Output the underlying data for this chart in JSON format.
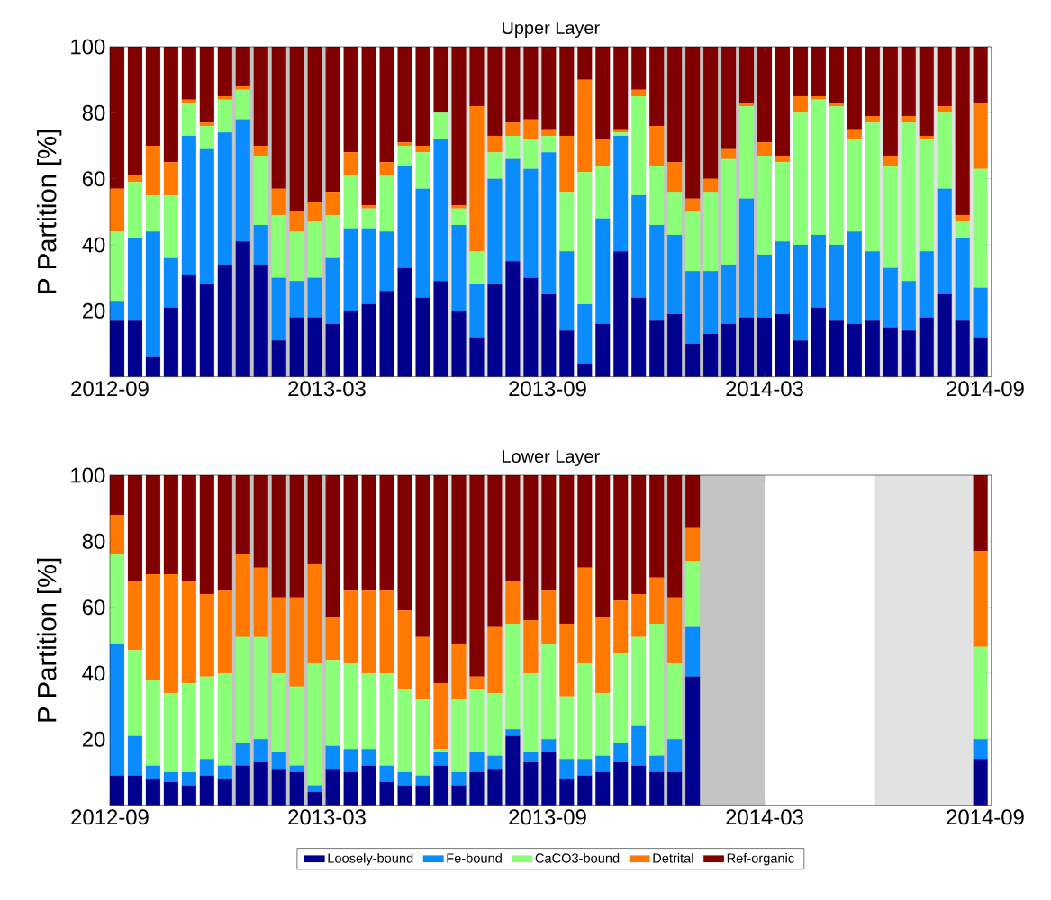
{
  "chart_data": [
    {
      "type": "bar",
      "stacked": true,
      "title": "Upper Layer",
      "ylabel": "P Partition [%]",
      "x": [
        "2012-09-07",
        "2012-09-22",
        "2012-10-07",
        "2012-10-22",
        "2012-11-06",
        "2012-11-21",
        "2012-12-06",
        "2012-12-21",
        "2013-01-05",
        "2013-01-20",
        "2013-02-04",
        "2013-02-19",
        "2013-03-06",
        "2013-03-21",
        "2013-04-05",
        "2013-04-20",
        "2013-05-05",
        "2013-05-20",
        "2013-06-04",
        "2013-06-19",
        "2013-07-04",
        "2013-07-19",
        "2013-08-03",
        "2013-08-18",
        "2013-09-02",
        "2013-09-17",
        "2013-10-02",
        "2013-10-17",
        "2013-11-01",
        "2013-11-16",
        "2013-12-01",
        "2013-12-16",
        "2013-12-31",
        "2014-01-15",
        "2014-01-30",
        "2014-02-14",
        "2014-03-01",
        "2014-03-16",
        "2014-03-31",
        "2014-04-15",
        "2014-04-30",
        "2014-05-15",
        "2014-05-30",
        "2014-06-14",
        "2014-06-29",
        "2014-07-14",
        "2014-07-29",
        "2014-08-13",
        "2014-08-28"
      ],
      "series": [
        {
          "color": "#00008f",
          "values": [
            17,
            17,
            6,
            21,
            31,
            28,
            34,
            41,
            34,
            11,
            18,
            18,
            16,
            20,
            22,
            26,
            33,
            24,
            29,
            20,
            12,
            28,
            35,
            30,
            25,
            14,
            4,
            16,
            38,
            24,
            17,
            19,
            10,
            13,
            16,
            18,
            18,
            19,
            11,
            21,
            17,
            16,
            17,
            15,
            14,
            18,
            25,
            17,
            12
          ]
        },
        {
          "color": "#0a8cff",
          "values": [
            6,
            25,
            38,
            15,
            42,
            41,
            40,
            37,
            12,
            19,
            11,
            12,
            20,
            25,
            23,
            18,
            31,
            33,
            43,
            26,
            16,
            32,
            31,
            33,
            43,
            24,
            18,
            32,
            35,
            31,
            29,
            24,
            22,
            19,
            18,
            36,
            19,
            22,
            29,
            22,
            23,
            28,
            21,
            18,
            15,
            20,
            32,
            25,
            15
          ]
        },
        {
          "color": "#8cff78",
          "values": [
            21,
            17,
            11,
            19,
            10,
            7,
            10,
            9,
            21,
            19,
            15,
            17,
            13,
            16,
            6,
            17,
            6,
            11,
            8,
            5,
            10,
            8,
            7,
            9,
            5,
            18,
            40,
            16,
            1,
            30,
            18,
            13,
            18,
            24,
            32,
            28,
            30,
            24,
            40,
            41,
            42,
            28,
            39,
            31,
            48,
            34,
            23,
            5,
            36
          ]
        },
        {
          "color": "#ff7800",
          "values": [
            13,
            2,
            15,
            10,
            1,
            1,
            1,
            1,
            3,
            8,
            6,
            6,
            7,
            7,
            1,
            4,
            1,
            2,
            0,
            1,
            44,
            5,
            4,
            6,
            2,
            17,
            28,
            8,
            1,
            2,
            12,
            9,
            4,
            4,
            3,
            1,
            4,
            2,
            5,
            1,
            1,
            3,
            2,
            3,
            2,
            1,
            2,
            2,
            20
          ]
        },
        {
          "color": "#800000",
          "values": [
            43,
            39,
            30,
            35,
            16,
            23,
            15,
            12,
            30,
            43,
            50,
            47,
            44,
            32,
            48,
            35,
            29,
            30,
            20,
            48,
            18,
            27,
            23,
            22,
            25,
            27,
            10,
            28,
            25,
            13,
            24,
            35,
            46,
            40,
            31,
            17,
            29,
            33,
            15,
            15,
            17,
            25,
            21,
            33,
            21,
            27,
            18,
            51,
            17
          ]
        }
      ],
      "xlim": [
        "2012-09-01",
        "2014-09-06"
      ],
      "xticks": [
        "2012-09",
        "2013-03",
        "2013-09",
        "2014-03",
        "2014-09"
      ],
      "ylim": [
        0,
        100
      ],
      "yticks": [
        20,
        40,
        60,
        80,
        100
      ],
      "bands": [
        {
          "axis": "x",
          "from": "2012-12-01",
          "to": "2013-03-01",
          "color": "#c4c4c4"
        },
        {
          "axis": "x",
          "from": "2013-06-01",
          "to": "2013-09-01",
          "color": "#e2e2e2"
        },
        {
          "axis": "x",
          "from": "2013-12-01",
          "to": "2014-03-01",
          "color": "#c4c4c4"
        },
        {
          "axis": "x",
          "from": "2014-06-01",
          "to": "2014-09-01",
          "color": "#e2e2e2"
        }
      ]
    },
    {
      "type": "bar",
      "stacked": true,
      "title": "Lower Layer",
      "ylabel": "P Partition [%]",
      "legend": "bottom",
      "x": [
        "2012-09-07",
        "2012-09-22",
        "2012-10-07",
        "2012-10-22",
        "2012-11-06",
        "2012-11-21",
        "2012-12-06",
        "2012-12-21",
        "2013-01-05",
        "2013-01-20",
        "2013-02-04",
        "2013-02-19",
        "2013-03-06",
        "2013-03-21",
        "2013-04-05",
        "2013-04-20",
        "2013-05-05",
        "2013-05-20",
        "2013-06-04",
        "2013-06-19",
        "2013-07-04",
        "2013-07-19",
        "2013-08-03",
        "2013-08-18",
        "2013-09-02",
        "2013-09-17",
        "2013-10-02",
        "2013-10-17",
        "2013-11-01",
        "2013-11-16",
        "2013-12-01",
        "2013-12-16",
        "2013-12-31",
        "2014-01-15",
        "2014-01-30",
        "2014-02-14",
        "2014-03-01",
        "2014-03-16",
        "2014-03-31",
        "2014-04-15",
        "2014-04-30",
        "2014-05-15",
        "2014-05-30",
        "2014-06-14",
        "2014-06-29",
        "2014-07-14",
        "2014-07-29",
        "2014-08-13",
        "2014-08-28"
      ],
      "series": [
        {
          "name": "Loosely-bound",
          "color": "#00008f",
          "values": [
            9,
            9,
            8,
            7,
            6,
            9,
            8,
            12,
            13,
            11,
            10,
            4,
            11,
            10,
            12,
            7,
            6,
            6,
            12,
            6,
            10,
            11,
            21,
            13,
            16,
            8,
            9,
            10,
            13,
            12,
            10,
            10,
            39,
            null,
            null,
            null,
            null,
            null,
            null,
            null,
            null,
            null,
            null,
            null,
            null,
            null,
            null,
            null,
            14
          ]
        },
        {
          "name": "Fe-bound",
          "color": "#0a8cff",
          "values": [
            40,
            12,
            4,
            3,
            4,
            5,
            4,
            7,
            7,
            5,
            2,
            2,
            7,
            7,
            5,
            5,
            4,
            3,
            4,
            4,
            6,
            4,
            2,
            3,
            4,
            6,
            5,
            5,
            6,
            12,
            5,
            10,
            15,
            null,
            null,
            null,
            null,
            null,
            null,
            null,
            null,
            null,
            null,
            null,
            null,
            null,
            null,
            null,
            6
          ]
        },
        {
          "name": "CaCO3-bound",
          "color": "#8cff78",
          "values": [
            27,
            26,
            26,
            24,
            27,
            25,
            28,
            32,
            31,
            24,
            24,
            37,
            26,
            26,
            23,
            28,
            25,
            23,
            1,
            22,
            19,
            19,
            32,
            24,
            29,
            19,
            29,
            19,
            27,
            27,
            40,
            23,
            20,
            null,
            null,
            null,
            null,
            null,
            null,
            null,
            null,
            null,
            null,
            null,
            null,
            null,
            null,
            null,
            28
          ]
        },
        {
          "name": "Detrital",
          "color": "#ff7800",
          "values": [
            12,
            21,
            32,
            36,
            31,
            25,
            25,
            25,
            21,
            23,
            27,
            30,
            13,
            22,
            25,
            25,
            24,
            19,
            20,
            17,
            4,
            20,
            13,
            16,
            16,
            22,
            29,
            23,
            16,
            13,
            14,
            20,
            10,
            null,
            null,
            null,
            null,
            null,
            null,
            null,
            null,
            null,
            null,
            null,
            null,
            null,
            null,
            null,
            29
          ]
        },
        {
          "name": "Ref-organic",
          "color": "#800000",
          "values": [
            12,
            32,
            30,
            30,
            32,
            36,
            35,
            24,
            28,
            37,
            37,
            27,
            43,
            35,
            35,
            35,
            41,
            49,
            63,
            51,
            61,
            46,
            32,
            44,
            35,
            45,
            28,
            43,
            38,
            36,
            31,
            37,
            16,
            null,
            null,
            null,
            null,
            null,
            null,
            null,
            null,
            null,
            null,
            null,
            null,
            null,
            null,
            null,
            23
          ]
        }
      ],
      "xlim": [
        "2012-09-01",
        "2014-09-06"
      ],
      "xticks": [
        "2012-09",
        "2013-03",
        "2013-09",
        "2014-03",
        "2014-09"
      ],
      "ylim": [
        0,
        100
      ],
      "yticks": [
        20,
        40,
        60,
        80,
        100
      ],
      "bands": [
        {
          "axis": "x",
          "from": "2012-12-01",
          "to": "2013-03-01",
          "color": "#c4c4c4"
        },
        {
          "axis": "x",
          "from": "2013-06-01",
          "to": "2013-09-01",
          "color": "#e2e2e2"
        },
        {
          "axis": "x",
          "from": "2013-12-01",
          "to": "2014-03-01",
          "color": "#c4c4c4"
        },
        {
          "axis": "x",
          "from": "2014-06-01",
          "to": "2014-09-01",
          "color": "#e2e2e2"
        }
      ]
    }
  ]
}
